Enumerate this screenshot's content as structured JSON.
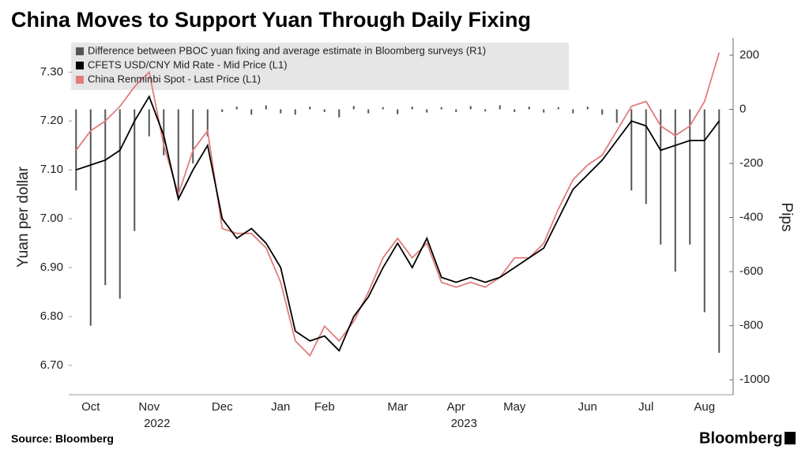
{
  "chart_data": {
    "type": "bar_line",
    "title": "China Moves to Support Yuan Through Daily Fixing",
    "y_label": "Yuan per dollar",
    "y2_label": "Pips",
    "source": "Source: Bloomberg",
    "brand": "Bloomberg",
    "categories": [
      null,
      "Oct",
      null,
      null,
      null,
      "Nov",
      null,
      null,
      null,
      null,
      "Dec",
      null,
      null,
      null,
      "Jan",
      null,
      null,
      "Feb",
      null,
      null,
      null,
      null,
      "Mar",
      null,
      null,
      null,
      "Apr",
      null,
      null,
      null,
      "May",
      null,
      null,
      null,
      null,
      "Jun",
      null,
      null,
      null,
      "Jul",
      null,
      null,
      null,
      "Aug",
      null
    ],
    "year_labels": [
      null,
      null,
      null,
      null,
      null,
      "2022",
      null,
      null,
      null,
      null,
      null,
      null,
      null,
      null,
      null,
      null,
      null,
      null,
      null,
      null,
      null,
      null,
      null,
      null,
      null,
      null,
      "2023",
      null,
      null,
      null,
      null,
      null,
      null,
      null,
      null,
      null,
      null,
      null,
      null,
      null,
      null,
      null,
      null,
      null,
      null
    ],
    "series": [
      {
        "name": "Difference between PBOC yuan fixing and average estimate in Bloomberg surveys (R1)",
        "color": "#555555",
        "axis": "y2",
        "kind": "bar",
        "values": [
          -300,
          -800,
          -650,
          -700,
          -450,
          -100,
          -170,
          -330,
          -200,
          -100,
          -10,
          10,
          -20,
          15,
          -15,
          -20,
          10,
          -10,
          -30,
          12,
          -15,
          8,
          -18,
          10,
          -12,
          8,
          -10,
          12,
          -8,
          15,
          -10,
          10,
          -12,
          8,
          -15,
          10,
          -20,
          -50,
          -300,
          -350,
          -500,
          -600,
          -500,
          -750,
          -900
        ]
      },
      {
        "name": "CFETS USD/CNY Mid Rate - Mid Price (L1)",
        "color": "#000000",
        "kind": "line",
        "values": [
          7.1,
          7.11,
          7.12,
          7.14,
          7.2,
          7.25,
          7.17,
          7.04,
          7.1,
          7.15,
          7.0,
          6.96,
          6.98,
          6.95,
          6.9,
          6.77,
          6.75,
          6.76,
          6.73,
          6.8,
          6.84,
          6.9,
          6.95,
          6.9,
          6.96,
          6.88,
          6.87,
          6.88,
          6.87,
          6.88,
          6.9,
          6.92,
          6.94,
          7.0,
          7.06,
          7.09,
          7.12,
          7.16,
          7.2,
          7.19,
          7.14,
          7.15,
          7.16,
          7.16,
          7.2
        ]
      },
      {
        "name": "China Renminbi Spot - Last Price (L1)",
        "color": "#e07d7b",
        "kind": "line",
        "values": [
          7.14,
          7.18,
          7.2,
          7.23,
          7.27,
          7.3,
          7.15,
          7.05,
          7.14,
          7.18,
          6.98,
          6.97,
          6.97,
          6.94,
          6.87,
          6.75,
          6.72,
          6.78,
          6.75,
          6.79,
          6.85,
          6.92,
          6.96,
          6.92,
          6.95,
          6.87,
          6.86,
          6.87,
          6.86,
          6.88,
          6.92,
          6.92,
          6.95,
          7.02,
          7.08,
          7.11,
          7.13,
          7.18,
          7.23,
          7.24,
          7.19,
          7.17,
          7.19,
          7.24,
          7.34
        ]
      }
    ],
    "ylim": [
      6.64,
      7.37
    ],
    "yticks": [
      {
        "value": 6.7,
        "label": "6.70"
      },
      {
        "value": 6.8,
        "label": "6.80"
      },
      {
        "value": 6.9,
        "label": "6.90"
      },
      {
        "value": 7.0,
        "label": "7.00"
      },
      {
        "value": 7.1,
        "label": "7.10"
      },
      {
        "value": 7.2,
        "label": "7.20"
      },
      {
        "value": 7.3,
        "label": "7.30"
      }
    ],
    "y2lim": [
      -1055,
      264
    ],
    "y2ticks": [
      200,
      0,
      -200,
      -400,
      -600,
      -800,
      -1000
    ],
    "legend": "top-left"
  }
}
